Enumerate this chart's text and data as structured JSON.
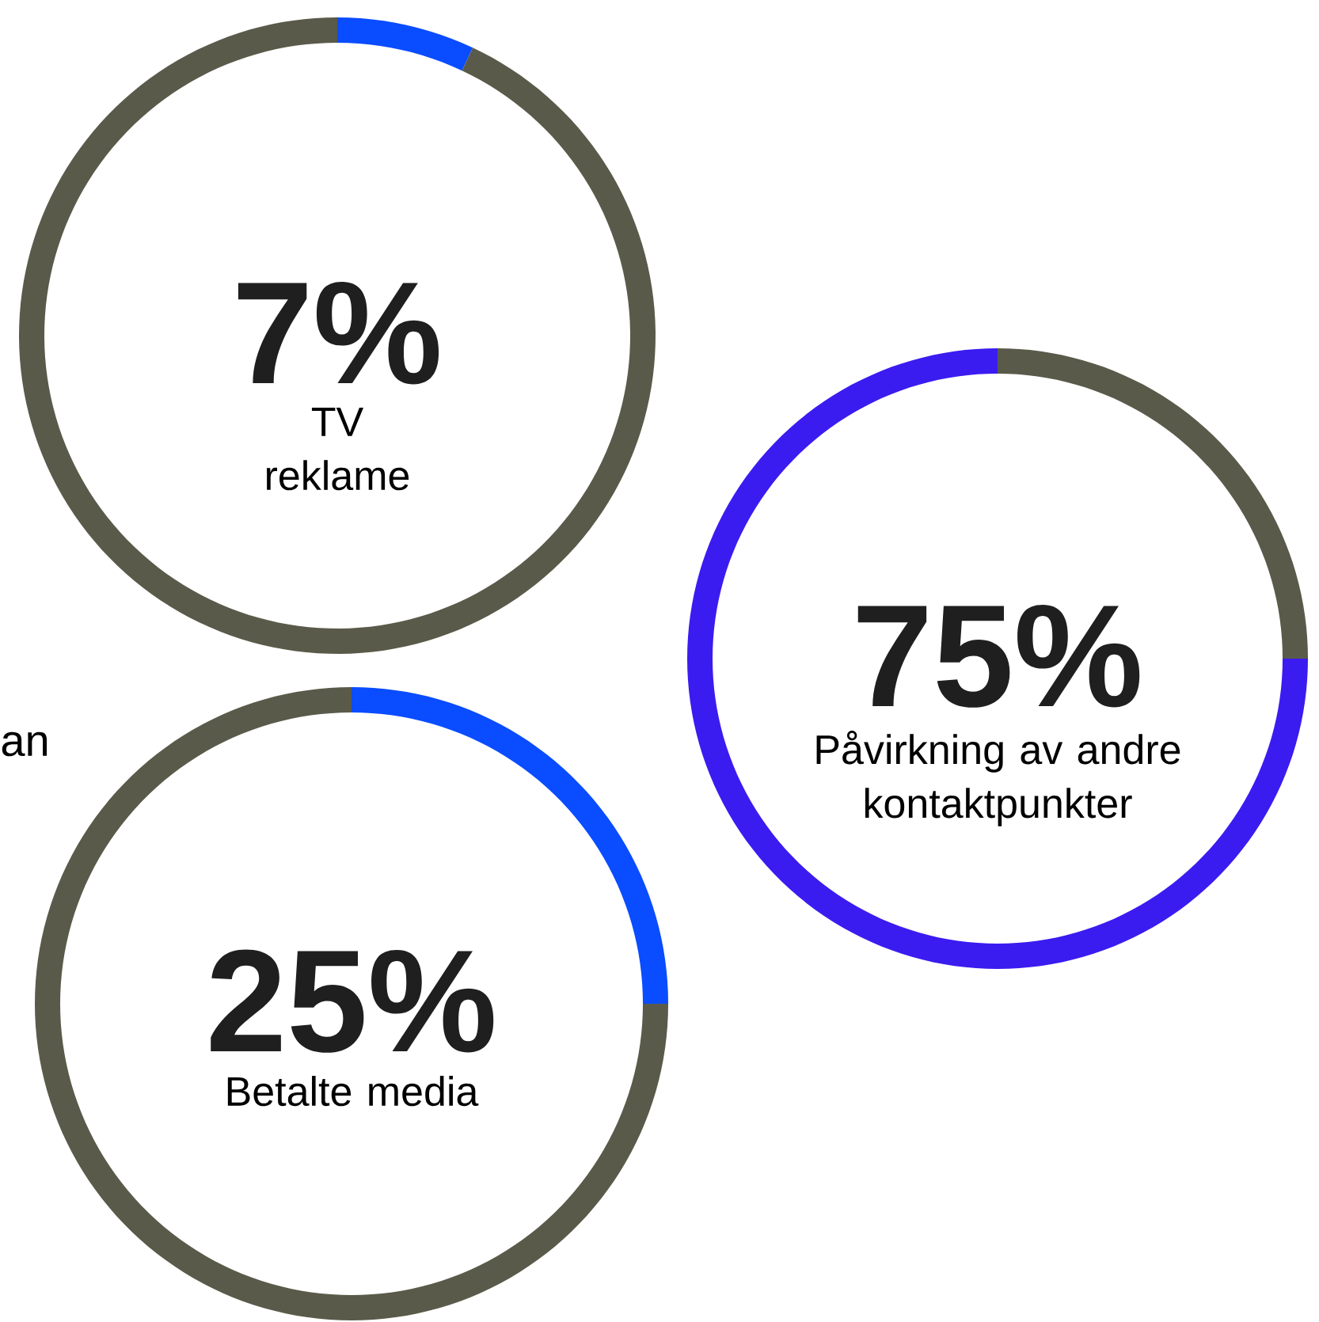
{
  "chart_data": [
    {
      "type": "donut",
      "categories": [
        "TV reklame",
        null
      ],
      "values": [
        7,
        93
      ],
      "colors": [
        "#0a4cff",
        "#5a5a4a"
      ],
      "value_labels": [
        "7%",
        null
      ]
    },
    {
      "type": "donut",
      "categories": [
        "Påvirkning av andre kontaktpunkter",
        null
      ],
      "values": [
        75,
        25
      ],
      "colors": [
        "#3a1cf0",
        "#5a5a4a"
      ],
      "value_labels": [
        "75%",
        null
      ]
    },
    {
      "type": "donut",
      "categories": [
        "Betalte media",
        null
      ],
      "values": [
        25,
        75
      ],
      "colors": [
        "#0a4cff",
        "#5a5a4a"
      ],
      "value_labels": [
        "25%",
        null
      ],
      "annotations": [
        "an"
      ]
    }
  ]
}
